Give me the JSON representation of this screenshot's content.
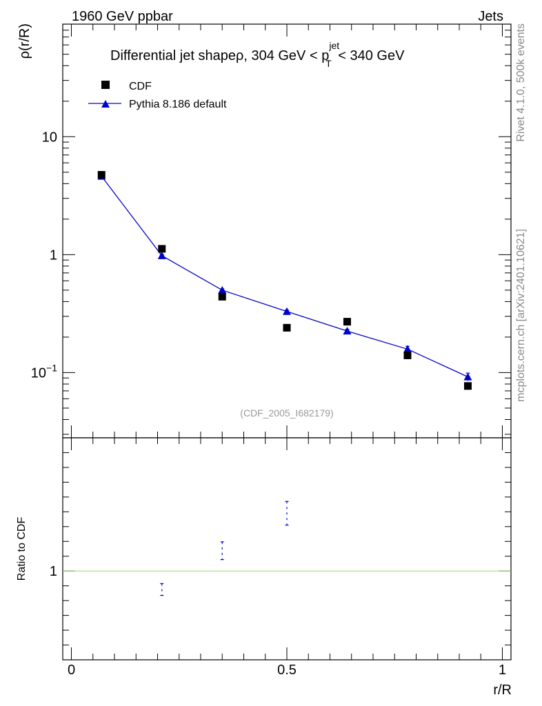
{
  "header": {
    "left_label": "1960 GeV ppbar",
    "right_label": "Jets"
  },
  "side_labels": {
    "rivet": "Rivet 4.1.0,  500k events",
    "mcplots": "mcplots.cern.ch [arXiv:2401.10621]"
  },
  "watermark": "(CDF_2005_I682179)",
  "chart_data": [
    {
      "type": "scatter",
      "panel": "main",
      "title": {
        "prefix": "Differential jet shapeρ, 304 GeV < p",
        "sup": "jet",
        "sub": "T",
        "suffix": " < 340 GeV"
      },
      "ylabel": "ρ(r/R)",
      "yscale": "log",
      "ylim": [
        0.028,
        90
      ],
      "xlim": [
        -0.02,
        1.02
      ],
      "y_tick_labels": [
        {
          "value": 10,
          "text": "10"
        },
        {
          "value": 1,
          "text": "1"
        },
        {
          "value": 0.1,
          "base": "10",
          "exp": "−1"
        }
      ],
      "legend": {
        "placement": "top-left",
        "entries": [
          "CDF",
          "Pythia 8.186 default"
        ]
      },
      "series": [
        {
          "name": "CDF",
          "marker": "square",
          "color": "#000000",
          "x": [
            0.07,
            0.21,
            0.35,
            0.5,
            0.64,
            0.78,
            0.92
          ],
          "y": [
            4.75,
            1.12,
            0.44,
            0.24,
            0.27,
            0.14,
            0.077
          ]
        },
        {
          "name": "Pythia 8.186 default",
          "marker": "triangle",
          "color": "#0000cc",
          "x": [
            0.07,
            0.21,
            0.35,
            0.5,
            0.64,
            0.78,
            0.92
          ],
          "y": [
            4.62,
            0.98,
            0.5,
            0.33,
            0.225,
            0.158,
            0.092
          ],
          "yerr": [
            0.05,
            0.02,
            0.012,
            0.008,
            0.008,
            0.009,
            0.007
          ]
        }
      ]
    },
    {
      "type": "scatter",
      "panel": "ratio",
      "ylabel": "Ratio to CDF",
      "xlabel": "r/R",
      "ylim": [
        0.4,
        1.9
      ],
      "xlim": [
        -0.02,
        1.02
      ],
      "reference_line": 1.0,
      "reference_color": "#99dd66",
      "y_tick_labels": [
        {
          "value": 1,
          "text": "1"
        }
      ],
      "x_tick_labels": [
        {
          "value": 0,
          "text": "0"
        },
        {
          "value": 0.5,
          "text": "0.5"
        },
        {
          "value": 1,
          "text": "1"
        }
      ],
      "series": [
        {
          "name": "Pythia 8.186 default",
          "color": "#0000cc",
          "x": [
            0.21,
            0.35,
            0.5
          ],
          "y": [
            0.875,
            1.137,
            1.39
          ],
          "yerr": [
            0.04,
            0.06,
            0.08
          ]
        }
      ]
    }
  ]
}
